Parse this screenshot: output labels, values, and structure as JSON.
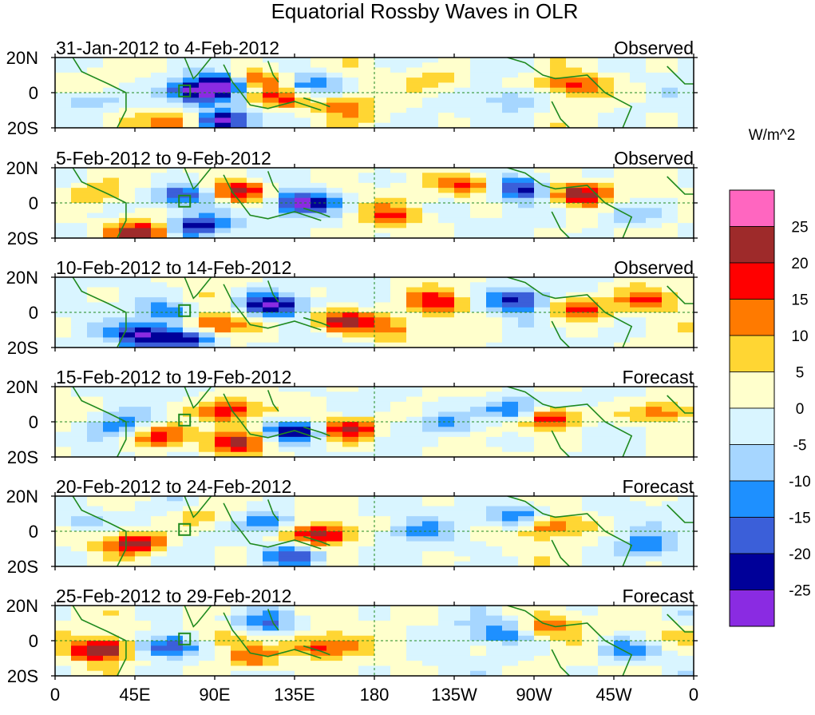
{
  "chart_data": {
    "type": "heatmap",
    "title": "Equatorial Rossby Waves in OLR",
    "units_label": "W/m^2",
    "x_ticks": [
      "0",
      "45E",
      "90E",
      "135E",
      "180",
      "135W",
      "90W",
      "45W",
      "0"
    ],
    "y_ticks": [
      "20N",
      "0",
      "20S"
    ],
    "xlim_deg_east": [
      0,
      360
    ],
    "ylim_deg_lat": [
      -20,
      20
    ],
    "colorbar": {
      "levels": [
        "25",
        "20",
        "15",
        "10",
        "5",
        "0",
        "-5",
        "-10",
        "-15",
        "-20",
        "-25"
      ],
      "colors": [
        "#ff66c0",
        "#9e2a2a",
        "#ff0000",
        "#ff7a00",
        "#ffd633",
        "#ffffcc",
        "#d9f5ff",
        "#a6d6ff",
        "#1e90ff",
        "#3b5fd9",
        "#000099",
        "#8a2be2"
      ]
    },
    "panels": [
      {
        "date_range": "31-Jan-2012 to 4-Feb-2012",
        "status": "Observed",
        "anomalies": [
          {
            "lon": 112,
            "lat": 7,
            "value": 22
          },
          {
            "lon": 95,
            "lat": 5,
            "value": -27
          },
          {
            "lon": 78,
            "lat": 0,
            "value": -25
          },
          {
            "lon": 70,
            "lat": -17,
            "value": 18
          },
          {
            "lon": 95,
            "lat": -16,
            "value": -27
          },
          {
            "lon": 143,
            "lat": 4,
            "value": -18
          },
          {
            "lon": 125,
            "lat": -3,
            "value": 17
          },
          {
            "lon": 165,
            "lat": -8,
            "value": 12
          },
          {
            "lon": 215,
            "lat": 7,
            "value": 12
          },
          {
            "lon": 290,
            "lat": 4,
            "value": 16
          },
          {
            "lon": 260,
            "lat": -4,
            "value": -10
          },
          {
            "lon": 20,
            "lat": -5,
            "value": -11
          }
        ]
      },
      {
        "date_range": "5-Feb-2012 to 9-Feb-2012",
        "status": "Observed",
        "anomalies": [
          {
            "lon": 105,
            "lat": 6,
            "value": 23
          },
          {
            "lon": 72,
            "lat": 4,
            "value": -22
          },
          {
            "lon": 80,
            "lat": -13,
            "value": -27
          },
          {
            "lon": 48,
            "lat": -17,
            "value": 23
          },
          {
            "lon": 140,
            "lat": 0,
            "value": -27
          },
          {
            "lon": 20,
            "lat": 5,
            "value": 10
          },
          {
            "lon": 235,
            "lat": 10,
            "value": 18
          },
          {
            "lon": 262,
            "lat": 8,
            "value": -22
          },
          {
            "lon": 295,
            "lat": 5,
            "value": 24
          },
          {
            "lon": 190,
            "lat": -7,
            "value": 12
          },
          {
            "lon": 320,
            "lat": -7,
            "value": -10
          }
        ]
      },
      {
        "date_range": "10-Feb-2012 to 14-Feb-2012",
        "status": "Observed",
        "anomalies": [
          {
            "lon": 122,
            "lat": 4,
            "value": -26
          },
          {
            "lon": 162,
            "lat": -5,
            "value": 25
          },
          {
            "lon": 62,
            "lat": 0,
            "value": -15
          },
          {
            "lon": 75,
            "lat": -16,
            "value": -22
          },
          {
            "lon": 50,
            "lat": -13,
            "value": -26
          },
          {
            "lon": 90,
            "lat": -7,
            "value": 17
          },
          {
            "lon": 260,
            "lat": 7,
            "value": -24
          },
          {
            "lon": 215,
            "lat": 6,
            "value": 16
          },
          {
            "lon": 295,
            "lat": 3,
            "value": 20
          },
          {
            "lon": 335,
            "lat": 7,
            "value": 14
          },
          {
            "lon": 190,
            "lat": -10,
            "value": 10
          }
        ]
      },
      {
        "date_range": "15-Feb-2012 to 19-Feb-2012",
        "status": "Forecast",
        "anomalies": [
          {
            "lon": 165,
            "lat": -4,
            "value": 25
          },
          {
            "lon": 135,
            "lat": -5,
            "value": -25
          },
          {
            "lon": 100,
            "lat": 6,
            "value": 18
          },
          {
            "lon": 60,
            "lat": -8,
            "value": 20
          },
          {
            "lon": 100,
            "lat": -12,
            "value": 19
          },
          {
            "lon": 258,
            "lat": 7,
            "value": -22
          },
          {
            "lon": 280,
            "lat": 2,
            "value": 23
          },
          {
            "lon": 340,
            "lat": 5,
            "value": 15
          },
          {
            "lon": 35,
            "lat": -3,
            "value": -14
          },
          {
            "lon": 220,
            "lat": -2,
            "value": -12
          }
        ]
      },
      {
        "date_range": "20-Feb-2012 to 24-Feb-2012",
        "status": "Forecast",
        "anomalies": [
          {
            "lon": 45,
            "lat": -7,
            "value": 24
          },
          {
            "lon": 150,
            "lat": -2,
            "value": 22
          },
          {
            "lon": 120,
            "lat": 5,
            "value": -16
          },
          {
            "lon": 260,
            "lat": 8,
            "value": -20
          },
          {
            "lon": 278,
            "lat": 3,
            "value": 18
          },
          {
            "lon": 85,
            "lat": 8,
            "value": 10
          },
          {
            "lon": 135,
            "lat": -14,
            "value": -20
          },
          {
            "lon": 205,
            "lat": 0,
            "value": -10
          },
          {
            "lon": 335,
            "lat": -8,
            "value": -12
          },
          {
            "lon": 15,
            "lat": 5,
            "value": -10
          }
        ]
      },
      {
        "date_range": "25-Feb-2012 to 29-Feb-2012",
        "status": "Forecast",
        "anomalies": [
          {
            "lon": 25,
            "lat": -5,
            "value": 27
          },
          {
            "lon": 62,
            "lat": -3,
            "value": -22
          },
          {
            "lon": 95,
            "lat": 2,
            "value": 12
          },
          {
            "lon": 150,
            "lat": -3,
            "value": 18
          },
          {
            "lon": 110,
            "lat": -10,
            "value": 16
          },
          {
            "lon": 120,
            "lat": 10,
            "value": -13
          },
          {
            "lon": 250,
            "lat": 5,
            "value": -14
          },
          {
            "lon": 280,
            "lat": 8,
            "value": 12
          },
          {
            "lon": 320,
            "lat": -5,
            "value": -12
          },
          {
            "lon": 350,
            "lat": 4,
            "value": 8
          }
        ]
      }
    ]
  }
}
